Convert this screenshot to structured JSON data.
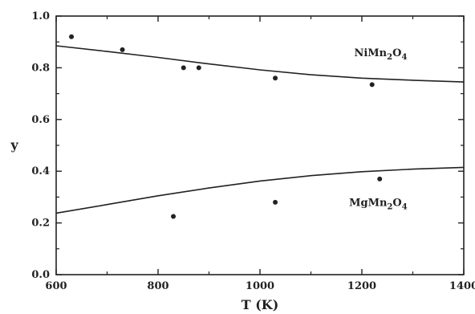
{
  "chart_data": {
    "type": "scatter",
    "title": "",
    "xlabel": "T (K)",
    "ylabel": "y",
    "xlim": [
      600,
      1400
    ],
    "ylim": [
      0.0,
      1.0
    ],
    "x_ticks": [
      600,
      800,
      1000,
      1200,
      1400
    ],
    "x_tick_labels": [
      "600",
      "800",
      "1000",
      "1200",
      "1400"
    ],
    "y_ticks": [
      0.0,
      0.2,
      0.4,
      0.6,
      0.8,
      1.0
    ],
    "y_tick_labels": [
      "0.0",
      "0.2",
      "0.4",
      "0.6",
      "0.8",
      "1.0"
    ],
    "grid": false,
    "series": [
      {
        "name": "NiMn2O4",
        "label_parts": [
          "NiMn",
          "2",
          "O",
          "4"
        ],
        "points": [
          {
            "x": 630,
            "y": 0.92
          },
          {
            "x": 730,
            "y": 0.87
          },
          {
            "x": 850,
            "y": 0.8
          },
          {
            "x": 880,
            "y": 0.8
          },
          {
            "x": 1030,
            "y": 0.76
          },
          {
            "x": 1220,
            "y": 0.735
          }
        ],
        "curve": [
          {
            "x": 600,
            "y": 0.885
          },
          {
            "x": 700,
            "y": 0.863
          },
          {
            "x": 800,
            "y": 0.84
          },
          {
            "x": 900,
            "y": 0.815
          },
          {
            "x": 1000,
            "y": 0.792
          },
          {
            "x": 1100,
            "y": 0.773
          },
          {
            "x": 1200,
            "y": 0.76
          },
          {
            "x": 1300,
            "y": 0.752
          },
          {
            "x": 1400,
            "y": 0.745
          }
        ]
      },
      {
        "name": "MgMn2O4",
        "label_parts": [
          "MgMn",
          "2",
          "O",
          "4"
        ],
        "points": [
          {
            "x": 830,
            "y": 0.225
          },
          {
            "x": 1030,
            "y": 0.28
          },
          {
            "x": 1235,
            "y": 0.37
          }
        ],
        "curve": [
          {
            "x": 600,
            "y": 0.238
          },
          {
            "x": 700,
            "y": 0.271
          },
          {
            "x": 800,
            "y": 0.305
          },
          {
            "x": 900,
            "y": 0.335
          },
          {
            "x": 1000,
            "y": 0.362
          },
          {
            "x": 1100,
            "y": 0.383
          },
          {
            "x": 1200,
            "y": 0.398
          },
          {
            "x": 1300,
            "y": 0.408
          },
          {
            "x": 1400,
            "y": 0.415
          }
        ]
      }
    ]
  }
}
